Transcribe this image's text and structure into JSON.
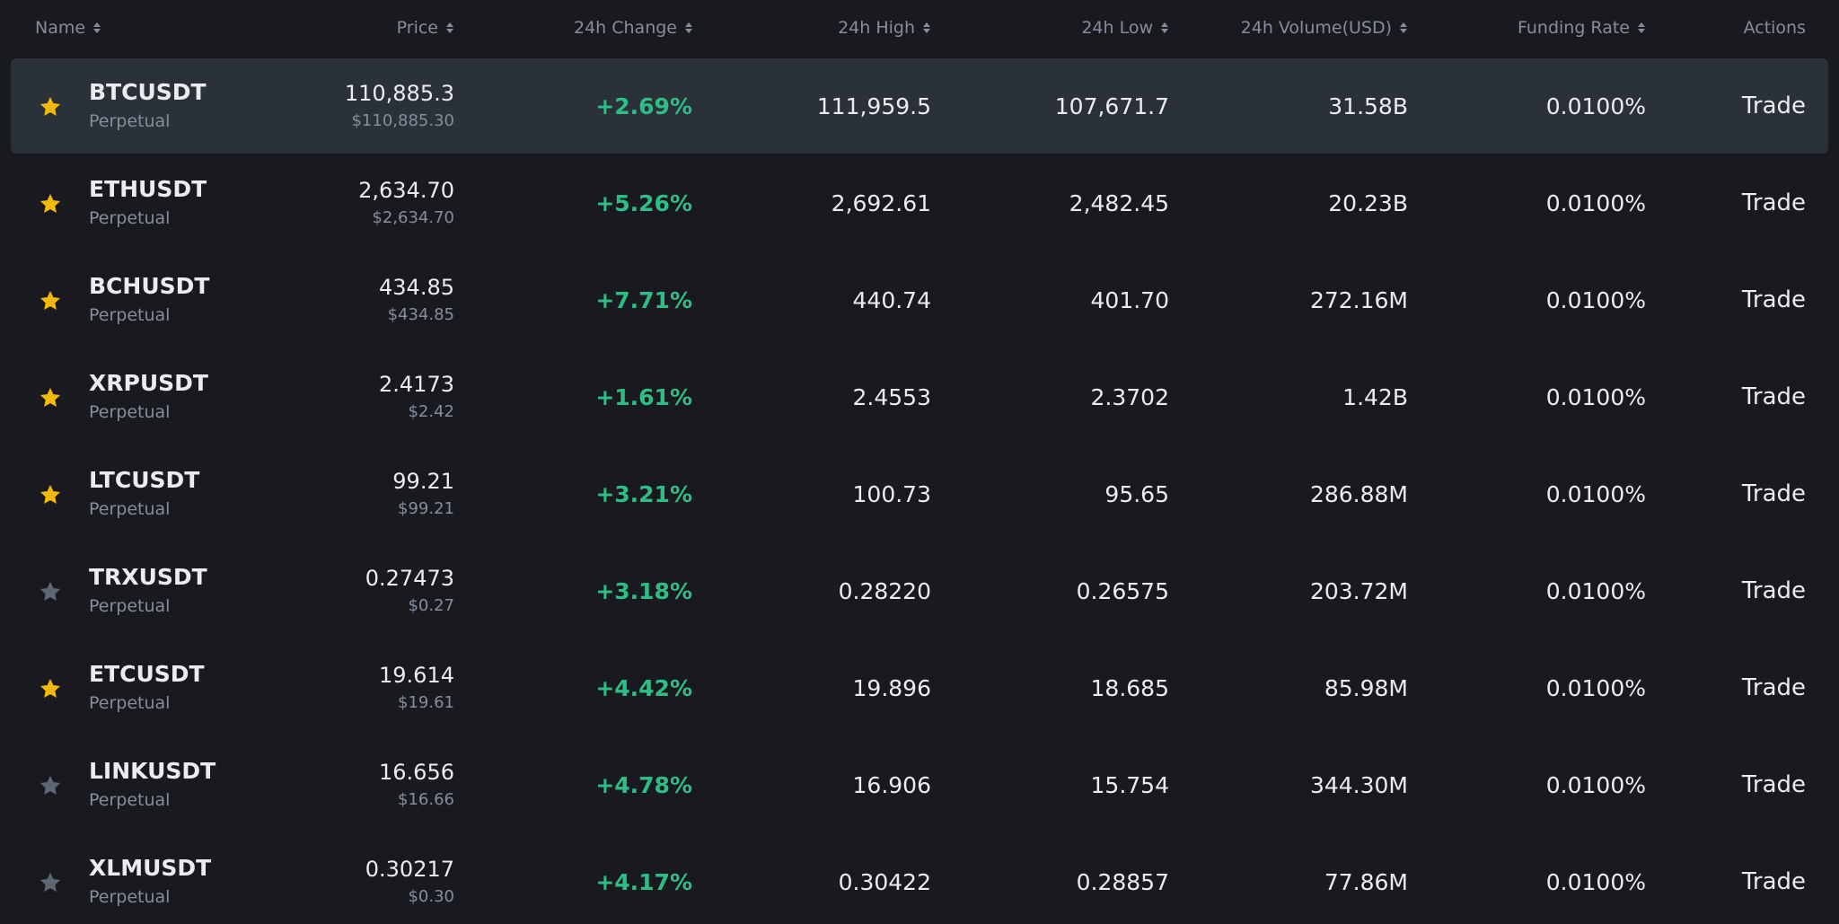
{
  "colors": {
    "background": "#181a20",
    "row_hover": "#2b3139",
    "positive": "#2ebd85",
    "star_active": "#f0b90b",
    "star_inactive": "#5e6673",
    "text_primary": "#eaecef",
    "text_secondary": "#848e9c"
  },
  "header": {
    "name": "Name",
    "price": "Price",
    "change": "24h Change",
    "high": "24h High",
    "low": "24h Low",
    "volume": "24h Volume(USD)",
    "funding": "Funding Rate",
    "actions": "Actions",
    "sort_icon": "sort-icon"
  },
  "rows": [
    {
      "favorite": true,
      "symbol": "BTCUSDT",
      "type": "Perpetual",
      "price": "110,885.3",
      "price_usd": "$110,885.30",
      "change": "+2.69%",
      "high": "111,959.5",
      "low": "107,671.7",
      "volume": "31.58B",
      "funding": "0.0100%",
      "action": "Trade",
      "hover": true
    },
    {
      "favorite": true,
      "symbol": "ETHUSDT",
      "type": "Perpetual",
      "price": "2,634.70",
      "price_usd": "$2,634.70",
      "change": "+5.26%",
      "high": "2,692.61",
      "low": "2,482.45",
      "volume": "20.23B",
      "funding": "0.0100%",
      "action": "Trade",
      "hover": false
    },
    {
      "favorite": true,
      "symbol": "BCHUSDT",
      "type": "Perpetual",
      "price": "434.85",
      "price_usd": "$434.85",
      "change": "+7.71%",
      "high": "440.74",
      "low": "401.70",
      "volume": "272.16M",
      "funding": "0.0100%",
      "action": "Trade",
      "hover": false
    },
    {
      "favorite": true,
      "symbol": "XRPUSDT",
      "type": "Perpetual",
      "price": "2.4173",
      "price_usd": "$2.42",
      "change": "+1.61%",
      "high": "2.4553",
      "low": "2.3702",
      "volume": "1.42B",
      "funding": "0.0100%",
      "action": "Trade",
      "hover": false
    },
    {
      "favorite": true,
      "symbol": "LTCUSDT",
      "type": "Perpetual",
      "price": "99.21",
      "price_usd": "$99.21",
      "change": "+3.21%",
      "high": "100.73",
      "low": "95.65",
      "volume": "286.88M",
      "funding": "0.0100%",
      "action": "Trade",
      "hover": false
    },
    {
      "favorite": false,
      "symbol": "TRXUSDT",
      "type": "Perpetual",
      "price": "0.27473",
      "price_usd": "$0.27",
      "change": "+3.18%",
      "high": "0.28220",
      "low": "0.26575",
      "volume": "203.72M",
      "funding": "0.0100%",
      "action": "Trade",
      "hover": false
    },
    {
      "favorite": true,
      "symbol": "ETCUSDT",
      "type": "Perpetual",
      "price": "19.614",
      "price_usd": "$19.61",
      "change": "+4.42%",
      "high": "19.896",
      "low": "18.685",
      "volume": "85.98M",
      "funding": "0.0100%",
      "action": "Trade",
      "hover": false
    },
    {
      "favorite": false,
      "symbol": "LINKUSDT",
      "type": "Perpetual",
      "price": "16.656",
      "price_usd": "$16.66",
      "change": "+4.78%",
      "high": "16.906",
      "low": "15.754",
      "volume": "344.30M",
      "funding": "0.0100%",
      "action": "Trade",
      "hover": false
    },
    {
      "favorite": false,
      "symbol": "XLMUSDT",
      "type": "Perpetual",
      "price": "0.30217",
      "price_usd": "$0.30",
      "change": "+4.17%",
      "high": "0.30422",
      "low": "0.28857",
      "volume": "77.86M",
      "funding": "0.0100%",
      "action": "Trade",
      "hover": false
    }
  ]
}
